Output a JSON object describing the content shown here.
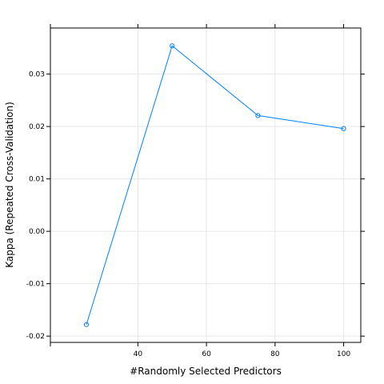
{
  "chart_data": {
    "type": "line",
    "title": "",
    "xlabel": "#Randomly Selected Predictors",
    "ylabel": "Kappa (Repeated Cross-Validation)",
    "x": [
      25,
      50,
      75,
      100
    ],
    "series": [
      {
        "values": [
          -0.0178,
          0.0354,
          0.0221,
          0.0196
        ]
      }
    ],
    "xlim": [
      14.5,
      105
    ],
    "ylim": [
      -0.0212,
      0.0388
    ],
    "xticks": [
      40,
      60,
      80,
      100
    ],
    "xtick_labels": [
      "40",
      "60",
      "80",
      "100"
    ],
    "yticks": [
      -0.02,
      -0.01,
      0.0,
      0.01,
      0.02,
      0.03
    ],
    "ytick_labels": [
      "-0.02",
      "-0.01",
      "0.00",
      "0.01",
      "0.02",
      "0.03"
    ],
    "grid": true,
    "markers": "open-circle",
    "series_color": "#0080ff",
    "grid_color": "#e6e6e6",
    "frame_color": "#000000"
  }
}
